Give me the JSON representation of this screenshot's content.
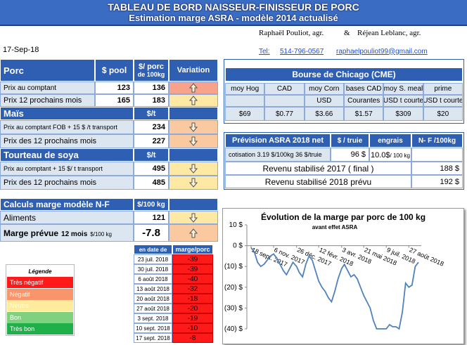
{
  "header": {
    "title": "TABLEAU DE BORD NAISSEUR-FINISSEUR  DE PORC",
    "subtitle": "Estimation marge ASRA - modèle 2014 actualisé"
  },
  "authors": {
    "name1": "Raphaël Pouliot, agr.",
    "amp": "&",
    "name2": "Réjean Leblanc, agr."
  },
  "date": "17-Sep-18",
  "contact": {
    "tel_label": "Tel:",
    "phone": "514-796-0567",
    "email": "raphaelpouliot99@gmail.com"
  },
  "porc": {
    "title": "Porc",
    "pool_header": "$ pool",
    "value_header": "$/ porc",
    "value_header2": "de 100kg",
    "variation_header": "Variation",
    "rows": [
      {
        "label": "Prix au comptant",
        "pool": 123,
        "value": 136,
        "variation": "up",
        "color": "#f7a38c"
      },
      {
        "label": "Prix 12 prochains mois",
        "pool": 165,
        "value": 183,
        "variation": "up",
        "color": "#fde9a4"
      }
    ]
  },
  "mais": {
    "title": "Maïs",
    "value_header": "$/t",
    "rows": [
      {
        "label": "Prix au comptant  FOB + 15 $ /t transport",
        "value": 234,
        "variation": "down",
        "color": "#fbc9a0"
      },
      {
        "label": "Prix des 12 prochains mois",
        "value": 227,
        "variation": "down",
        "color": "#fbc9a0"
      }
    ]
  },
  "soya": {
    "title": "Tourteau de soya",
    "value_header": "$/t",
    "rows": [
      {
        "label": "Prix au comptant + 15 $/ t transport",
        "value": 495,
        "variation": "down",
        "color": "#fde9a4"
      },
      {
        "label": "Prix des 12 prochains mois",
        "value": 485,
        "variation": "down",
        "color": "#fde9a4"
      }
    ]
  },
  "calculs": {
    "title": "Calculs marge  modèle N-F",
    "value_header": "$/100 kg",
    "aliments": {
      "label": "Aliments",
      "value": 121,
      "variation": "down",
      "color": "#fde9a4"
    },
    "marge": {
      "label": "Marge prévue",
      "label2": "12 mois",
      "label3": "$/100 kg",
      "value": -7.8,
      "variation": "up",
      "color": "#fbc9a0"
    }
  },
  "history": {
    "headers": [
      "en date de",
      "marge/porc"
    ],
    "rows": [
      [
        "23 juil. 2018",
        -39
      ],
      [
        "30 juil. 2018",
        -39
      ],
      [
        "6 août 2018",
        -40
      ],
      [
        "13 août 2018",
        -32
      ],
      [
        "20 août 2018",
        -18
      ],
      [
        "27 août 2018",
        -20
      ],
      [
        "3 sept. 2018",
        -19
      ],
      [
        "10 sept. 2018",
        -10
      ],
      [
        "17 sept. 2018",
        -8
      ]
    ]
  },
  "legend": {
    "title": "Légende",
    "items": [
      {
        "label": "Très négatif",
        "color": "#ff1a1a"
      },
      {
        "label": "Négatif",
        "color": "#f8956a"
      },
      {
        "label": "Neutre",
        "color": "#ffeb9c"
      },
      {
        "label": "Bon",
        "color": "#7fd17f"
      },
      {
        "label": "Très bon",
        "color": "#1fb04a"
      }
    ]
  },
  "chicago": {
    "title": "Bourse de Chicago (CME)",
    "columns": [
      {
        "header": "moy Hog",
        "value": "$69"
      },
      {
        "header": "CAD",
        "value": "$0.77"
      },
      {
        "header": "moy Corn",
        "unit": "USD",
        "value": "$3.66"
      },
      {
        "header": "bases CAD",
        "unit": "Courantes",
        "value": "$1.57"
      },
      {
        "header": "moy S. meal",
        "unit": "USD t courte",
        "value": "$309"
      },
      {
        "header": "prime",
        "unit": "USD t courte",
        "value": "$20"
      }
    ]
  },
  "prevision": {
    "headers": [
      "Prévision ASRA 2018 net",
      "$ / truie",
      "engrais",
      "N- F /100kg"
    ],
    "cotisation": "cotisation 3.19 $/100kg  36 $/truie",
    "per_sow": "96 $",
    "engrais": "10.0$",
    "engrais_unit": "/ 100 kg",
    "revenu2017": {
      "label": "Revenu stabilisé 2017 ( final )",
      "value": "188 $"
    },
    "revenu2018": {
      "label": "Revenu stabilisé 2018 prévu",
      "value": "192 $"
    }
  },
  "chart_data": {
    "type": "line",
    "title": "Évolution de la marge par porc de 100 kg",
    "subtitle": "avant effet ASRA",
    "color": "#4f81bd",
    "grid": false,
    "x": [
      "2017-09-18",
      "2017-09-25",
      "2017-10-02",
      "2017-10-09",
      "2017-10-16",
      "2017-10-23",
      "2017-10-30",
      "2017-11-06",
      "2017-11-13",
      "2017-11-20",
      "2017-11-27",
      "2017-12-04",
      "2017-12-11",
      "2017-12-18",
      "2017-12-26",
      "2018-01-01",
      "2018-01-08",
      "2018-01-15",
      "2018-01-22",
      "2018-01-29",
      "2018-02-05",
      "2018-02-12",
      "2018-02-19",
      "2018-02-26",
      "2018-03-05",
      "2018-03-12",
      "2018-03-19",
      "2018-03-26",
      "2018-04-03",
      "2018-04-09",
      "2018-04-16",
      "2018-04-23",
      "2018-04-30",
      "2018-05-07",
      "2018-05-14",
      "2018-05-21",
      "2018-05-28",
      "2018-06-04",
      "2018-06-11",
      "2018-06-18",
      "2018-06-25",
      "2018-07-02",
      "2018-07-09",
      "2018-07-16",
      "2018-07-23",
      "2018-07-30",
      "2018-08-06",
      "2018-08-13",
      "2018-08-20",
      "2018-08-27",
      "2018-09-03",
      "2018-09-10",
      "2018-09-17"
    ],
    "values": [
      -1,
      -3,
      -8,
      -10,
      -9,
      -7,
      -5,
      -4,
      -6,
      -9,
      -12,
      -14,
      -11,
      -8,
      -10,
      -13,
      -15,
      -9,
      -5,
      -7,
      -12,
      -17,
      -20,
      -22,
      -25,
      -27,
      -22,
      -16,
      -11,
      -9,
      -12,
      -15,
      -14,
      -16,
      -20,
      -24,
      -27,
      -30,
      -36,
      -40,
      -40,
      -40,
      -40,
      -38,
      -39,
      -39,
      -40,
      -32,
      -18,
      -20,
      -19,
      -10,
      -8
    ],
    "xlim": [
      "2017-09-18",
      "2018-09-17"
    ],
    "xticks": [
      {
        "value": "2017-09-18",
        "label": "18 sept. 2017"
      },
      {
        "value": "2017-11-06",
        "label": "6 nov. 2017"
      },
      {
        "value": "2017-12-26",
        "label": "26 déc. 2017"
      },
      {
        "value": "2018-02-12",
        "label": "12 févr. 2018"
      },
      {
        "value": "2018-04-03",
        "label": "3 avr. 2018"
      },
      {
        "value": "2018-05-21",
        "label": "21 mai 2018"
      },
      {
        "value": "2018-07-09",
        "label": "9 juil. 2018"
      },
      {
        "value": "2018-08-27",
        "label": "27 août 2018"
      }
    ],
    "ylim": [
      -40,
      10
    ],
    "yticks": [
      {
        "value": 10,
        "label": "10 $"
      },
      {
        "value": 0,
        "label": "0 $"
      },
      {
        "value": -10,
        "label": "(10) $"
      },
      {
        "value": -20,
        "label": "(20) $"
      },
      {
        "value": -30,
        "label": "(30) $"
      },
      {
        "value": -40,
        "label": "(40) $"
      }
    ]
  }
}
